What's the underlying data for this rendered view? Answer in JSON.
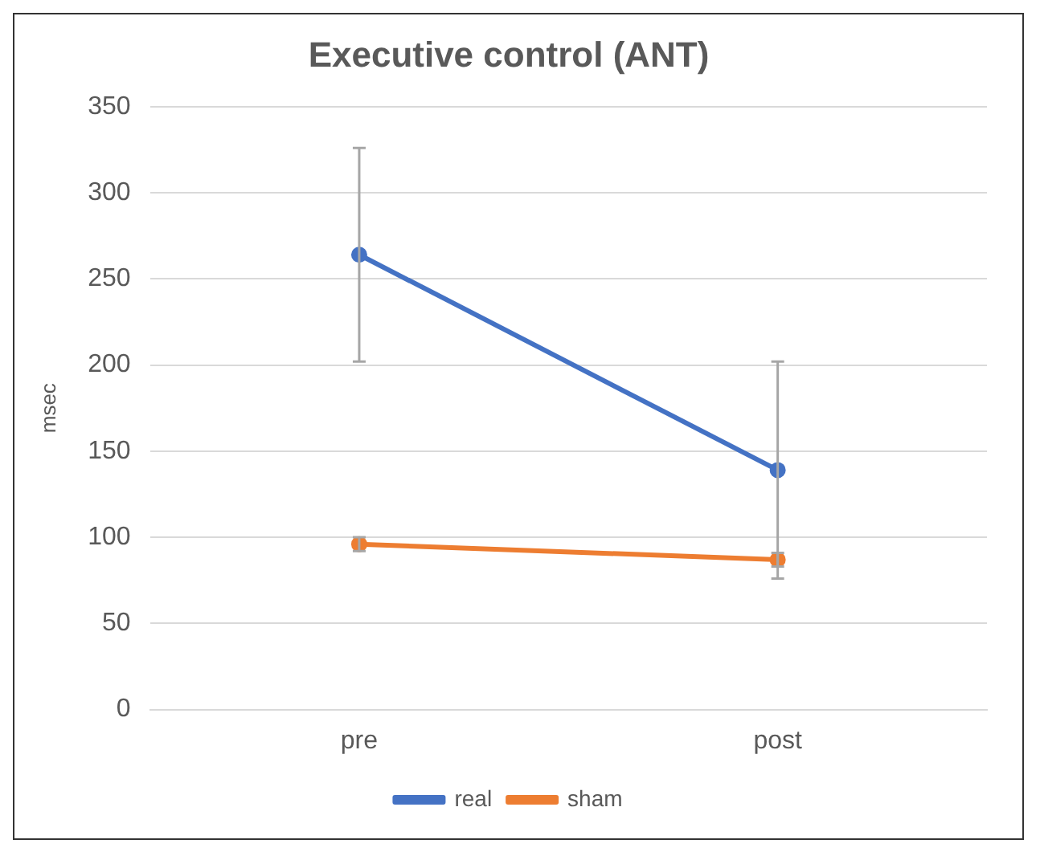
{
  "chart_data": {
    "type": "line",
    "title": "Executive control (ANT)",
    "ylabel": "msec",
    "categories": [
      "pre",
      "post"
    ],
    "series": [
      {
        "name": "real",
        "color": "#4472c4",
        "values": [
          264,
          139
        ],
        "errors": [
          62,
          63
        ]
      },
      {
        "name": "sham",
        "color": "#ed7d31",
        "values": [
          96,
          87
        ],
        "errors": [
          4,
          4
        ]
      }
    ],
    "ylim": [
      0,
      350
    ],
    "yticks": [
      0,
      50,
      100,
      150,
      200,
      250,
      300,
      350
    ],
    "grid": "y",
    "legend": "bottom",
    "marker": "circle",
    "line_style": "solid"
  }
}
